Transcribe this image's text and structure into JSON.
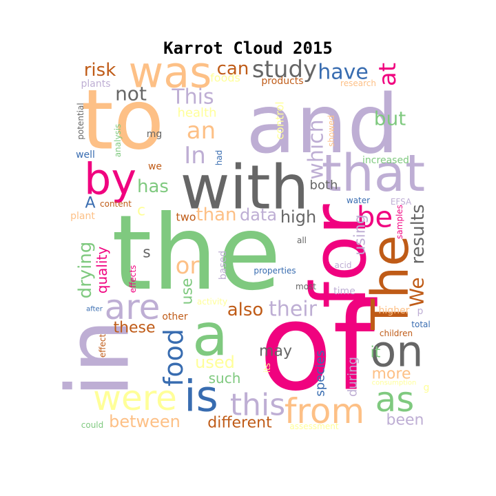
{
  "chart_data": {
    "type": "wordcloud",
    "title": "Karrot Cloud 2015",
    "palette": {
      "purple": "#BEAED4",
      "orange": "#FDC086",
      "yellow": "#FFFF99",
      "blue": "#386CB0",
      "pink": "#F0027F",
      "brown": "#BF5B17",
      "gray": "#666666",
      "green": "#7FC97F"
    },
    "words": [
      {
        "text": "and",
        "color": "purple",
        "rotated": false
      },
      {
        "text": "the",
        "color": "green",
        "rotated": false
      },
      {
        "text": "of",
        "color": "pink",
        "rotated": false
      },
      {
        "text": "in",
        "color": "purple",
        "rotated": true
      },
      {
        "text": "to",
        "color": "orange",
        "rotated": false
      },
      {
        "text": "with",
        "color": "gray",
        "rotated": false
      },
      {
        "text": "was",
        "color": "orange",
        "rotated": false
      },
      {
        "text": "for",
        "color": "pink",
        "rotated": true
      },
      {
        "text": "The",
        "color": "brown",
        "rotated": true
      },
      {
        "text": "a",
        "color": "green",
        "rotated": false
      },
      {
        "text": "that",
        "color": "purple",
        "rotated": false
      },
      {
        "text": "by",
        "color": "pink",
        "rotated": false
      },
      {
        "text": "is",
        "color": "blue",
        "rotated": false
      },
      {
        "text": "were",
        "color": "yellow",
        "rotated": false
      },
      {
        "text": "on",
        "color": "gray",
        "rotated": false
      },
      {
        "text": "as",
        "color": "green",
        "rotated": false
      },
      {
        "text": "from",
        "color": "orange",
        "rotated": false
      },
      {
        "text": "are",
        "color": "purple",
        "rotated": false
      },
      {
        "text": "this",
        "color": "purple",
        "rotated": false
      },
      {
        "text": "food",
        "color": "blue",
        "rotated": true
      },
      {
        "text": "be",
        "color": "pink",
        "rotated": false
      },
      {
        "text": "at",
        "color": "pink",
        "rotated": true
      },
      {
        "text": "study",
        "color": "gray",
        "rotated": false
      },
      {
        "text": "have",
        "color": "blue",
        "rotated": false
      },
      {
        "text": "an",
        "color": "orange",
        "rotated": false
      },
      {
        "text": "In",
        "color": "purple",
        "rotated": false
      },
      {
        "text": "This",
        "color": "purple",
        "rotated": false
      },
      {
        "text": "not",
        "color": "gray",
        "rotated": false
      },
      {
        "text": "can",
        "color": "brown",
        "rotated": false
      },
      {
        "text": "risk",
        "color": "brown",
        "rotated": false
      },
      {
        "text": "but",
        "color": "green",
        "rotated": false
      },
      {
        "text": "which",
        "color": "purple",
        "rotated": true
      },
      {
        "text": "or",
        "color": "orange",
        "rotated": false
      },
      {
        "text": "their",
        "color": "purple",
        "rotated": false
      },
      {
        "text": "also",
        "color": "brown",
        "rotated": false
      },
      {
        "text": "has",
        "color": "green",
        "rotated": false
      },
      {
        "text": "We",
        "color": "brown",
        "rotated": true
      },
      {
        "text": "results",
        "color": "gray",
        "rotated": true
      },
      {
        "text": "it",
        "color": "green",
        "rotated": false
      },
      {
        "text": "more",
        "color": "orange",
        "rotated": false
      },
      {
        "text": "between",
        "color": "orange",
        "rotated": false
      },
      {
        "text": "different",
        "color": "brown",
        "rotated": false
      },
      {
        "text": "been",
        "color": "purple",
        "rotated": false
      },
      {
        "text": "used",
        "color": "yellow",
        "rotated": false
      },
      {
        "text": "these",
        "color": "brown",
        "rotated": false
      },
      {
        "text": "may",
        "color": "gray",
        "rotated": false
      },
      {
        "text": "than",
        "color": "orange",
        "rotated": false
      },
      {
        "text": "data",
        "color": "purple",
        "rotated": false
      },
      {
        "text": "high",
        "color": "gray",
        "rotated": false
      },
      {
        "text": "using",
        "color": "purple",
        "rotated": true
      },
      {
        "text": "drying",
        "color": "green",
        "rotated": true
      },
      {
        "text": "quality",
        "color": "pink",
        "rotated": true
      },
      {
        "text": "use",
        "color": "green",
        "rotated": true
      },
      {
        "text": "A",
        "color": "blue",
        "rotated": false
      },
      {
        "text": "such",
        "color": "green",
        "rotated": false
      },
      {
        "text": "species",
        "color": "blue",
        "rotated": true
      },
      {
        "text": "during",
        "color": "purple",
        "rotated": true
      },
      {
        "text": "both",
        "color": "gray",
        "rotated": false
      },
      {
        "text": "two",
        "color": "brown",
        "rotated": false
      },
      {
        "text": "s",
        "color": "gray",
        "rotated": false
      },
      {
        "text": "c",
        "color": "yellow",
        "rotated": false
      },
      {
        "text": "control",
        "color": "yellow",
        "rotated": true
      },
      {
        "text": "health",
        "color": "yellow",
        "rotated": false
      },
      {
        "text": "foods",
        "color": "yellow",
        "rotated": false
      },
      {
        "text": "plants",
        "color": "purple",
        "rotated": false
      },
      {
        "text": "products",
        "color": "brown",
        "rotated": false
      },
      {
        "text": "research",
        "color": "orange",
        "rotated": false
      },
      {
        "text": "potential",
        "color": "gray",
        "rotated": true
      },
      {
        "text": "analysis",
        "color": "green",
        "rotated": true
      },
      {
        "text": "mg",
        "color": "gray",
        "rotated": false
      },
      {
        "text": "well",
        "color": "blue",
        "rotated": false
      },
      {
        "text": "we",
        "color": "brown",
        "rotated": false
      },
      {
        "text": "had",
        "color": "blue",
        "rotated": true
      },
      {
        "text": "showed",
        "color": "orange",
        "rotated": true
      },
      {
        "text": "increased",
        "color": "green",
        "rotated": false
      },
      {
        "text": "content",
        "color": "brown",
        "rotated": false
      },
      {
        "text": "plant",
        "color": "orange",
        "rotated": false
      },
      {
        "text": "water",
        "color": "blue",
        "rotated": false
      },
      {
        "text": "EFSA",
        "color": "purple",
        "rotated": false
      },
      {
        "text": "samples",
        "color": "pink",
        "rotated": true
      },
      {
        "text": "all",
        "color": "gray",
        "rotated": false
      },
      {
        "text": "based",
        "color": "purple",
        "rotated": true
      },
      {
        "text": "acid",
        "color": "purple",
        "rotated": false
      },
      {
        "text": "properties",
        "color": "blue",
        "rotated": false
      },
      {
        "text": "most",
        "color": "gray",
        "rotated": false
      },
      {
        "text": "time",
        "color": "purple",
        "rotated": false
      },
      {
        "text": "effects",
        "color": "pink",
        "rotated": true
      },
      {
        "text": "activity",
        "color": "yellow",
        "rotated": false
      },
      {
        "text": "other",
        "color": "brown",
        "rotated": false
      },
      {
        "text": "after",
        "color": "blue",
        "rotated": false
      },
      {
        "text": "higher",
        "color": "orange",
        "rotated": false
      },
      {
        "text": "p",
        "color": "purple",
        "rotated": false
      },
      {
        "text": "total",
        "color": "blue",
        "rotated": false
      },
      {
        "text": "children",
        "color": "brown",
        "rotated": false
      },
      {
        "text": "effect",
        "color": "brown",
        "rotated": true
      },
      {
        "text": "its",
        "color": "yellow",
        "rotated": true
      },
      {
        "text": "consumption",
        "color": "yellow",
        "rotated": false
      },
      {
        "text": "g",
        "color": "yellow",
        "rotated": false
      },
      {
        "text": "could",
        "color": "green",
        "rotated": false
      },
      {
        "text": "assessment",
        "color": "yellow",
        "rotated": false
      }
    ]
  }
}
